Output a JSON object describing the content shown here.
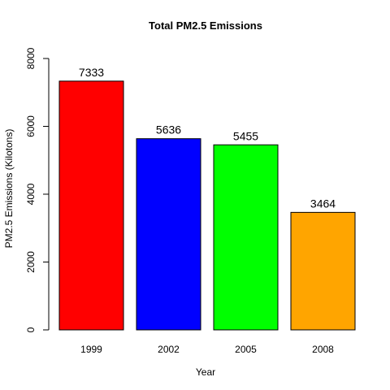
{
  "chart_data": {
    "type": "bar",
    "title": "Total PM2.5 Emissions",
    "xlabel": "Year",
    "ylabel": "PM2.5 Emissions (Kilotons)",
    "categories": [
      "1999",
      "2002",
      "2005",
      "2008"
    ],
    "values": [
      7333,
      5636,
      5455,
      3464
    ],
    "data_labels": [
      "7333",
      "5636",
      "5455",
      "3464"
    ],
    "colors": [
      "#ff0000",
      "#0000ff",
      "#00ff00",
      "#ffa500"
    ],
    "ylim": [
      0,
      8000
    ],
    "yticks": [
      0,
      2000,
      4000,
      6000,
      8000
    ],
    "ytick_labels": [
      "0",
      "2000",
      "4000",
      "6000",
      "8000"
    ],
    "grid": false,
    "legend": "none"
  }
}
